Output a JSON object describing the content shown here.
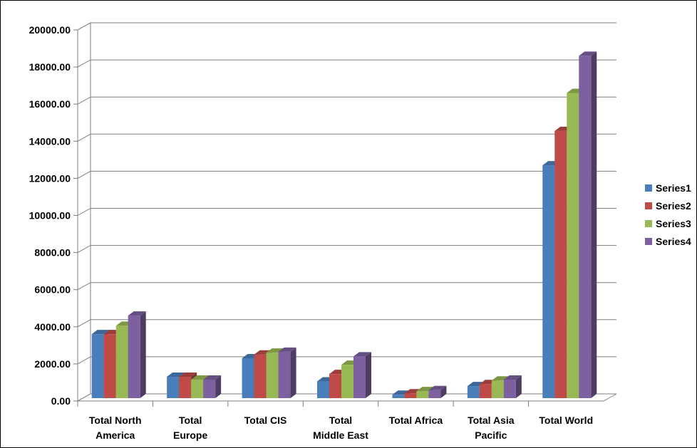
{
  "chart_data": {
    "type": "bar",
    "categories": [
      [
        "Total North",
        "America"
      ],
      [
        "Total",
        "Europe"
      ],
      [
        "Total CIS"
      ],
      [
        "Total",
        "Middle East"
      ],
      [
        "Total Africa"
      ],
      [
        "Total Asia",
        "Pacific"
      ],
      [
        "Total World"
      ]
    ],
    "series": [
      {
        "name": "Series1",
        "color": "#4a7ebb",
        "values": [
          3450,
          1150,
          2150,
          900,
          180,
          650,
          12550
        ]
      },
      {
        "name": "Series2",
        "color": "#be4b48",
        "values": [
          3450,
          1150,
          2350,
          1300,
          260,
          760,
          14400
        ]
      },
      {
        "name": "Series3",
        "color": "#98b954",
        "values": [
          3900,
          1000,
          2450,
          1800,
          380,
          950,
          16450
        ]
      },
      {
        "name": "Series4",
        "color": "#7d60a0",
        "values": [
          4450,
          1000,
          2500,
          2250,
          430,
          1000,
          18450
        ]
      }
    ],
    "ylim": [
      0,
      20000
    ],
    "yticks": [
      "0.00",
      "2000.00",
      "4000.00",
      "6000.00",
      "8000.00",
      "10000.00",
      "12000.00",
      "14000.00",
      "16000.00",
      "18000.00",
      "20000.00"
    ],
    "grid": true,
    "legend": "right",
    "title": "",
    "xlabel": "",
    "ylabel": ""
  }
}
